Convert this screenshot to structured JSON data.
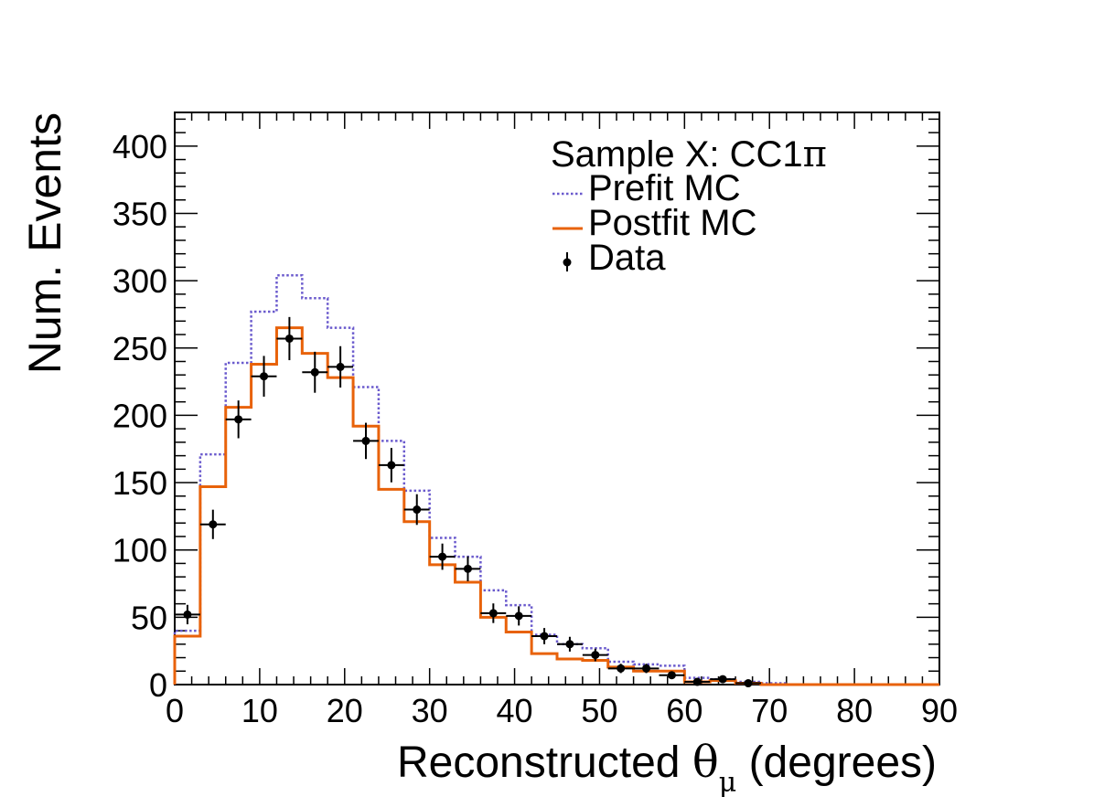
{
  "chart_data": {
    "type": "histogram",
    "title": "",
    "xlabel_main": "Reconstructed ",
    "xlabel_symbol": "θ",
    "xlabel_subscript": "μ",
    "xlabel_unit": "(degrees)",
    "ylabel": "Num. Events",
    "xlim": [
      0,
      90
    ],
    "ylim": [
      0,
      425
    ],
    "x_ticks": [
      0,
      10,
      20,
      30,
      40,
      50,
      60,
      70,
      80,
      90
    ],
    "x_tick_labels": [
      "0",
      "10",
      "20",
      "30",
      "40",
      "50",
      "60",
      "70",
      "80",
      "90"
    ],
    "y_ticks": [
      0,
      50,
      100,
      150,
      200,
      250,
      300,
      350,
      400
    ],
    "y_tick_labels": [
      "0",
      "50",
      "100",
      "150",
      "200",
      "250",
      "300",
      "350",
      "400"
    ],
    "bin_edges": [
      0,
      3,
      6,
      9,
      12,
      15,
      18,
      21,
      24,
      27,
      30,
      33,
      36,
      39,
      42,
      45,
      48,
      51,
      54,
      57,
      60,
      63,
      66,
      69,
      72,
      75,
      78,
      81,
      84,
      87,
      90
    ],
    "series": [
      {
        "name": "Prefit MC",
        "style": "step-dotted",
        "color": "#6a5acd",
        "values": [
          40,
          171,
          239,
          277,
          304,
          287,
          265,
          221,
          181,
          144,
          109,
          95,
          70,
          59,
          37,
          30,
          27,
          17,
          15,
          14,
          5,
          4,
          2,
          1,
          0,
          0,
          0,
          0,
          0,
          0
        ]
      },
      {
        "name": "Postfit MC",
        "style": "step-solid",
        "color": "#e8620a",
        "values": [
          36,
          147,
          206,
          238,
          265,
          246,
          228,
          192,
          145,
          121,
          89,
          76,
          50,
          39,
          23,
          19,
          18,
          13,
          10,
          10,
          2,
          3,
          1,
          0,
          0,
          0,
          0,
          0,
          0,
          0
        ]
      },
      {
        "name": "Data",
        "style": "points-errorbars",
        "color": "#000000",
        "x": [
          1.5,
          4.5,
          7.5,
          10.5,
          13.5,
          16.5,
          19.5,
          22.5,
          25.5,
          28.5,
          31.5,
          34.5,
          37.5,
          40.5,
          43.5,
          46.5,
          49.5,
          52.5,
          55.5,
          58.5,
          61.5,
          64.5,
          67.5
        ],
        "values": [
          52,
          119,
          197,
          229,
          257,
          232,
          236,
          181,
          163,
          130,
          95,
          86,
          53,
          51,
          36,
          30,
          22,
          12,
          12,
          7,
          2,
          4,
          1
        ]
      }
    ],
    "legend": {
      "header_text": "Sample X: CC1",
      "header_symbol": "π",
      "entries": [
        "Prefit MC",
        "Postfit MC",
        "Data"
      ],
      "placement": "top-right"
    }
  }
}
